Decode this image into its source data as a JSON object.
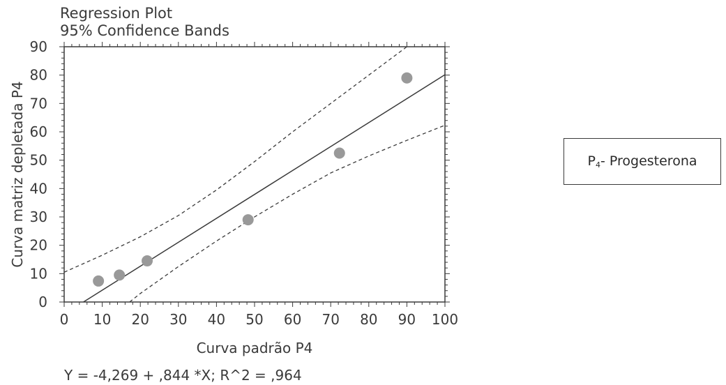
{
  "chart_data": {
    "type": "scatter",
    "title": "Regression Plot",
    "subtitle": "95% Confidence Bands",
    "xlabel": "Curva padrão P4",
    "ylabel": "Curva matriz depletada P4",
    "xlim": [
      0,
      100
    ],
    "ylim": [
      0,
      90
    ],
    "x_ticks": [
      "0",
      "10",
      "20",
      "30",
      "40",
      "50",
      "60",
      "70",
      "80",
      "90",
      "100"
    ],
    "y_ticks": [
      "0",
      "10",
      "20",
      "30",
      "40",
      "50",
      "60",
      "70",
      "80",
      "90"
    ],
    "grid": false,
    "points": [
      {
        "x": 9,
        "y": 7.4
      },
      {
        "x": 14.5,
        "y": 9.5
      },
      {
        "x": 21.8,
        "y": 14.5
      },
      {
        "x": 48.3,
        "y": 29
      },
      {
        "x": 72.3,
        "y": 52.5
      },
      {
        "x": 90,
        "y": 79
      }
    ],
    "regression": {
      "intercept": -4.269,
      "slope": 0.844,
      "r2": 0.964
    },
    "upper_band": [
      {
        "x": 0,
        "y": 10.5
      },
      {
        "x": 10,
        "y": 16.5
      },
      {
        "x": 20,
        "y": 23
      },
      {
        "x": 30,
        "y": 30.5
      },
      {
        "x": 40,
        "y": 39.5
      },
      {
        "x": 50,
        "y": 49.5
      },
      {
        "x": 60,
        "y": 60
      },
      {
        "x": 70,
        "y": 70
      },
      {
        "x": 80,
        "y": 80
      },
      {
        "x": 90,
        "y": 90
      }
    ],
    "lower_band": [
      {
        "x": 17.2,
        "y": 0
      },
      {
        "x": 20,
        "y": 3
      },
      {
        "x": 30,
        "y": 12.5
      },
      {
        "x": 40,
        "y": 21.5
      },
      {
        "x": 50,
        "y": 30
      },
      {
        "x": 60,
        "y": 38
      },
      {
        "x": 70,
        "y": 45.5
      },
      {
        "x": 80,
        "y": 51.5
      },
      {
        "x": 90,
        "y": 57
      },
      {
        "x": 100,
        "y": 62.3
      }
    ],
    "equation": "Y = -4,269 + ,844 *X; R^2 = ,964",
    "point_color": "#999999",
    "line_color": "#3a3a3a"
  },
  "legend": {
    "main": "P",
    "sub": "4",
    "rest": "- Progesterona"
  }
}
